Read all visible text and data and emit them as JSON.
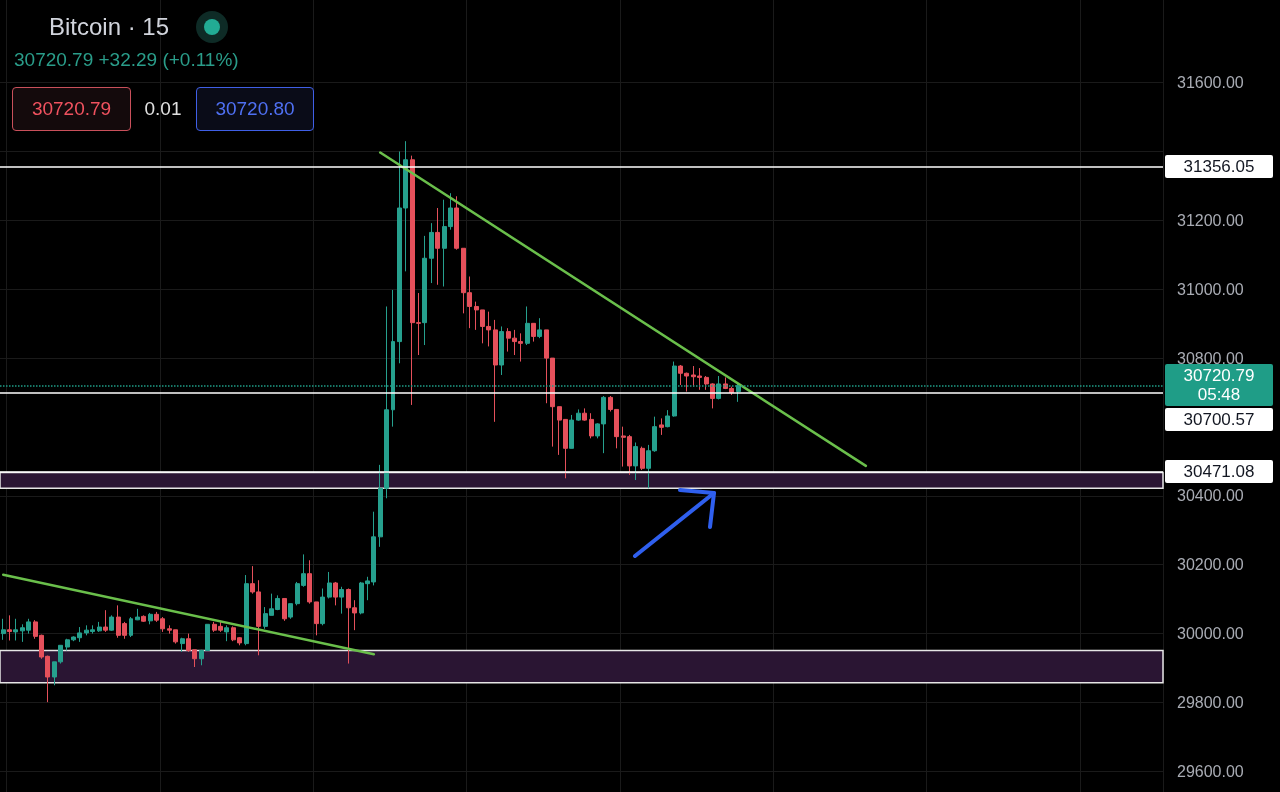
{
  "chart_data": {
    "type": "candlestick",
    "title": "Bitcoin · 15",
    "subtitle": "30720.79 +32.29 (+0.11%)",
    "annotations": [
      "30720.79",
      "0.01",
      "30720.80"
    ],
    "categories": [
      null,
      null,
      null,
      null,
      null,
      null,
      null,
      null,
      null,
      null,
      null,
      null,
      null,
      null,
      null,
      null,
      null,
      null,
      null,
      null,
      null,
      null,
      null,
      null,
      null,
      null,
      null,
      null,
      null,
      null,
      null,
      null,
      null,
      null,
      null,
      null,
      null,
      null,
      null,
      null,
      null,
      null,
      null,
      null,
      null,
      null,
      null,
      null,
      null,
      null,
      null,
      null,
      null,
      null,
      null,
      null,
      null,
      null,
      null,
      null,
      null,
      null,
      null,
      null,
      null,
      null,
      null,
      null,
      null,
      null,
      null,
      null,
      null,
      null,
      null,
      null,
      null,
      null,
      null,
      null,
      null,
      null,
      null,
      null,
      null,
      null,
      null,
      null,
      null,
      null,
      null,
      null,
      null,
      null,
      null,
      null,
      null,
      null,
      null,
      null,
      null,
      null,
      null,
      null,
      null,
      null,
      null,
      null,
      null,
      null,
      null,
      null,
      null,
      null,
      null,
      null,
      null,
      null,
      null,
      null,
      null,
      null,
      null,
      null,
      null,
      null,
      null,
      null,
      null,
      null,
      null,
      null,
      null,
      null,
      null,
      null,
      null,
      null,
      null,
      null,
      null,
      null,
      null,
      null,
      null,
      null,
      null,
      null,
      null,
      null,
      null,
      null,
      null,
      null,
      null,
      null,
      null,
      null,
      null,
      null,
      null,
      null,
      null,
      null,
      null,
      null,
      null,
      null,
      null,
      null,
      null,
      null,
      null,
      null,
      null,
      null,
      null,
      null,
      null,
      null,
      null,
      null
    ],
    "ohlc": [
      [
        30000,
        30043,
        29982,
        30011
      ],
      [
        30011,
        30053,
        29980,
        30006
      ],
      [
        30005,
        30043,
        29980,
        30011
      ],
      [
        30008,
        30027,
        29976,
        30017
      ],
      [
        30010,
        30043,
        30000,
        30034
      ],
      [
        30034,
        30039,
        29985,
        29992
      ],
      [
        29995,
        29997,
        29927,
        29932
      ],
      [
        29934,
        29936,
        29801,
        29874
      ],
      [
        29874,
        29918,
        29850,
        29918
      ],
      [
        29918,
        29966,
        29913,
        29966
      ],
      [
        29961,
        29985,
        29951,
        29982
      ],
      [
        29982,
        29992,
        29978,
        29990
      ],
      [
        29988,
        30019,
        29976,
        30002
      ],
      [
        30002,
        30024,
        29995,
        30010
      ],
      [
        30006,
        30024,
        30000,
        30011
      ],
      [
        30008,
        30034,
        30005,
        30019
      ],
      [
        30019,
        30068,
        30005,
        30010
      ],
      [
        30010,
        30053,
        30008,
        30048
      ],
      [
        30048,
        30082,
        29988,
        29995
      ],
      [
        30029,
        30034,
        29985,
        29995
      ],
      [
        29995,
        30048,
        29990,
        30043
      ],
      [
        30040,
        30072,
        30039,
        30048
      ],
      [
        30050,
        30053,
        30034,
        30036
      ],
      [
        30037,
        30060,
        30027,
        30056
      ],
      [
        30056,
        30063,
        30034,
        30039
      ],
      [
        30043,
        30048,
        30005,
        30014
      ],
      [
        30014,
        30024,
        30000,
        30010
      ],
      [
        30011,
        30011,
        29971,
        29976
      ],
      [
        29971,
        29988,
        29947,
        29985
      ],
      [
        29985,
        30000,
        29947,
        29951
      ],
      [
        29953,
        29953,
        29903,
        29927
      ],
      [
        29927,
        29953,
        29908,
        29951
      ],
      [
        29951,
        30027,
        29951,
        30027
      ],
      [
        30027,
        30034,
        30005,
        30010
      ],
      [
        30021,
        30037,
        30005,
        30010
      ],
      [
        30005,
        30024,
        29978,
        30017
      ],
      [
        30017,
        30021,
        29978,
        29982
      ],
      [
        29988,
        29990,
        29966,
        29973
      ],
      [
        29971,
        30170,
        29966,
        30145
      ],
      [
        30145,
        30196,
        30116,
        30121
      ],
      [
        30121,
        30155,
        29937,
        30021
      ],
      [
        30021,
        30077,
        30014,
        30058
      ],
      [
        30053,
        30116,
        30053,
        30072
      ],
      [
        30070,
        30111,
        30068,
        30102
      ],
      [
        30102,
        30102,
        30037,
        30043
      ],
      [
        30048,
        30087,
        30043,
        30087
      ],
      [
        30087,
        30150,
        30082,
        30145
      ],
      [
        30140,
        30230,
        30136,
        30174
      ],
      [
        30174,
        30213,
        30087,
        30092
      ],
      [
        30092,
        30092,
        29995,
        30029
      ],
      [
        30029,
        30131,
        30024,
        30106
      ],
      [
        30106,
        30179,
        30102,
        30147
      ],
      [
        30147,
        30150,
        30082,
        30106
      ],
      [
        30106,
        30136,
        30058,
        30128
      ],
      [
        30128,
        30131,
        29913,
        30075
      ],
      [
        30075,
        30097,
        30010,
        30060
      ],
      [
        30060,
        30150,
        30056,
        30147
      ],
      [
        30145,
        30165,
        30097,
        30153
      ],
      [
        30150,
        30354,
        30140,
        30281
      ],
      [
        30281,
        30490,
        30252,
        30422
      ],
      [
        30422,
        30950,
        30393,
        30650
      ],
      [
        30650,
        30998,
        30601,
        30848
      ],
      [
        30848,
        31400,
        30785,
        31236
      ],
      [
        31236,
        31430,
        31052,
        31376
      ],
      [
        31376,
        31388,
        30664,
        30903
      ],
      [
        30903,
        30989,
        30809,
        30901
      ],
      [
        30903,
        31155,
        30838,
        31090
      ],
      [
        31090,
        31192,
        31018,
        31165
      ],
      [
        31165,
        31236,
        31013,
        31119
      ],
      [
        31119,
        31260,
        31008,
        31182
      ],
      [
        31182,
        31279,
        31173,
        31236
      ],
      [
        31236,
        31270,
        31115,
        31119
      ],
      [
        31119,
        31119,
        30930,
        30990
      ],
      [
        30990,
        31037,
        30887,
        30950
      ],
      [
        30950,
        30964,
        30882,
        30940
      ],
      [
        30940,
        30940,
        30843,
        30892
      ],
      [
        30892,
        30935,
        30834,
        30882
      ],
      [
        30882,
        30911,
        30615,
        30780
      ],
      [
        30780,
        30892,
        30751,
        30877
      ],
      [
        30877,
        30887,
        30819,
        30858
      ],
      [
        30858,
        30882,
        30809,
        30848
      ],
      [
        30848,
        30872,
        30790,
        30843
      ],
      [
        30843,
        30950,
        30838,
        30901
      ],
      [
        30901,
        30901,
        30848,
        30863
      ],
      [
        30863,
        30916,
        30858,
        30882
      ],
      [
        30882,
        30882,
        30669,
        30800
      ],
      [
        30800,
        30800,
        30543,
        30659
      ],
      [
        30659,
        30659,
        30519,
        30620
      ],
      [
        30622,
        30622,
        30451,
        30538
      ],
      [
        30538,
        30635,
        30538,
        30620
      ],
      [
        30620,
        30651,
        30618,
        30640
      ],
      [
        30640,
        30654,
        30618,
        30620
      ],
      [
        30622,
        30640,
        30567,
        30574
      ],
      [
        30574,
        30611,
        30567,
        30609
      ],
      [
        30609,
        30690,
        30524,
        30686
      ],
      [
        30686,
        30690,
        30645,
        30651
      ],
      [
        30651,
        30651,
        30538,
        30572
      ],
      [
        30574,
        30601,
        30485,
        30570
      ],
      [
        30572,
        30577,
        30461,
        30487
      ],
      [
        30487,
        30555,
        30446,
        30543
      ],
      [
        30538,
        30543,
        30475,
        30480
      ],
      [
        30480,
        30548,
        30422,
        30531
      ],
      [
        30531,
        30630,
        30528,
        30601
      ],
      [
        30606,
        30625,
        30577,
        30599
      ],
      [
        30601,
        30649,
        30599,
        30632
      ],
      [
        30632,
        30790,
        30630,
        30777
      ],
      [
        30777,
        30780,
        30722,
        30756
      ],
      [
        30756,
        30758,
        30703,
        30748
      ],
      [
        30751,
        30777,
        30717,
        30746
      ],
      [
        30748,
        30771,
        30708,
        30744
      ],
      [
        30744,
        30748,
        30708,
        30725
      ],
      [
        30725,
        30727,
        30654,
        30683
      ],
      [
        30683,
        30748,
        30680,
        30725
      ],
      [
        30725,
        30744,
        30710,
        30712
      ],
      [
        30712,
        30717,
        30693,
        30700
      ],
      [
        30703,
        30730,
        30673,
        30721
      ],
      null,
      null,
      null,
      null,
      null,
      null,
      null,
      null,
      null,
      null,
      null,
      null,
      null,
      null,
      null,
      null,
      null,
      null,
      null,
      null,
      null,
      null,
      null,
      null,
      null,
      null,
      null,
      null,
      null,
      null,
      null,
      null,
      null,
      null,
      null,
      null,
      null,
      null,
      null,
      null,
      null,
      null,
      null,
      null,
      null,
      null,
      null,
      null,
      null,
      null,
      null,
      null,
      null,
      null,
      null,
      null,
      null,
      null,
      null,
      null,
      null,
      null,
      null,
      null,
      null,
      null
    ],
    "colors": [
      "#26a08e",
      "#e5505b",
      "#26a08e",
      "#26a08e",
      "#26a08e",
      "#e5505b",
      "#e5505b",
      "#e5505b",
      "#26a08e",
      "#26a08e",
      "#26a08e",
      "#26a08e",
      "#26a08e",
      "#26a08e",
      "#26a08e",
      "#26a08e",
      "#e5505b",
      "#26a08e",
      "#e5505b",
      "#e5505b",
      "#26a08e",
      "#26a08e",
      "#e5505b",
      "#26a08e",
      "#e5505b",
      "#e5505b",
      "#e5505b",
      "#e5505b",
      "#26a08e",
      "#e5505b",
      "#e5505b",
      "#26a08e",
      "#26a08e",
      "#e5505b",
      "#e5505b",
      "#26a08e",
      "#e5505b",
      "#e5505b",
      "#26a08e",
      "#e5505b",
      "#e5505b",
      "#26a08e",
      "#26a08e",
      "#26a08e",
      "#e5505b",
      "#26a08e",
      "#26a08e",
      "#26a08e",
      "#e5505b",
      "#e5505b",
      "#26a08e",
      "#26a08e",
      "#e5505b",
      "#26a08e",
      "#e5505b",
      "#e5505b",
      "#26a08e",
      "#26a08e",
      "#26a08e",
      "#26a08e",
      "#26a08e",
      "#26a08e",
      "#26a08e",
      "#26a08e",
      "#e5505b",
      "#e5505b",
      "#26a08e",
      "#26a08e",
      "#e5505b",
      "#26a08e",
      "#26a08e",
      "#e5505b",
      "#e5505b",
      "#e5505b",
      "#e5505b",
      "#e5505b",
      "#e5505b",
      "#e5505b",
      "#26a08e",
      "#e5505b",
      "#e5505b",
      "#e5505b",
      "#26a08e",
      "#e5505b",
      "#26a08e",
      "#e5505b",
      "#e5505b",
      "#e5505b",
      "#e5505b",
      "#26a08e",
      "#26a08e",
      "#e5505b",
      "#e5505b",
      "#26a08e",
      "#26a08e",
      "#e5505b",
      "#e5505b",
      "#e5505b",
      "#e5505b",
      "#26a08e",
      "#e5505b",
      "#26a08e",
      "#26a08e",
      "#e5505b",
      "#26a08e",
      "#26a08e",
      "#e5505b",
      "#e5505b",
      "#e5505b",
      "#e5505b",
      "#e5505b",
      "#e5505b",
      "#26a08e",
      "#e5505b",
      "#e5505b",
      "#26a08e",
      null,
      null,
      null,
      null,
      null,
      null,
      null,
      null,
      null,
      null,
      null,
      null,
      null,
      null,
      null,
      null,
      null,
      null,
      null,
      null,
      null,
      null,
      null,
      null,
      null,
      null,
      null,
      null,
      null,
      null,
      null,
      null,
      null,
      null,
      null,
      null,
      null,
      null,
      null,
      null,
      null,
      null,
      null,
      null,
      null,
      null,
      null,
      null,
      null,
      null,
      null,
      null,
      null,
      null,
      null,
      null,
      null,
      null,
      null,
      null,
      null,
      null,
      null,
      null,
      null,
      null
    ],
    "series": [
      {
        "type": "line",
        "color": "#6abf4b",
        "values": [
          null,
          null,
          null,
          null,
          null,
          null,
          null,
          null,
          null,
          null,
          null,
          null,
          null,
          null,
          null,
          null,
          null,
          null,
          null,
          null,
          null,
          null,
          null,
          null,
          null,
          null,
          null,
          null,
          null,
          null,
          null,
          null,
          null,
          null,
          null,
          null,
          null,
          null,
          null,
          null,
          null,
          null,
          null,
          null,
          null,
          null,
          null,
          null,
          null,
          null,
          null,
          null,
          null,
          null,
          null,
          null,
          null,
          null,
          null,
          31397,
          null,
          null,
          null,
          null,
          null,
          null,
          null,
          null,
          null,
          null,
          null,
          null,
          null,
          null,
          null,
          null,
          null,
          null,
          null,
          null,
          null,
          null,
          null,
          null,
          null,
          null,
          null,
          null,
          null,
          null,
          null,
          null,
          null,
          null,
          null,
          null,
          null,
          null,
          null,
          null,
          null,
          null,
          null,
          null,
          null,
          null,
          null,
          null,
          null,
          null,
          null,
          null,
          null,
          null,
          null,
          null,
          null,
          null,
          null,
          null,
          null,
          null,
          null,
          null,
          null,
          null,
          null,
          null,
          null,
          null,
          null,
          null,
          null,
          null,
          null,
          30487,
          null,
          null,
          null,
          null,
          null,
          null,
          null,
          null,
          null,
          null,
          null,
          null,
          null,
          null,
          null,
          null,
          null,
          null,
          null,
          null,
          null,
          null,
          null,
          null,
          null,
          null,
          null,
          null,
          null,
          null,
          null,
          null,
          null,
          null,
          null,
          null,
          null,
          null,
          null,
          null,
          null,
          null,
          null,
          null,
          null,
          null
        ]
      },
      {
        "type": "line",
        "color": "#6abf4b",
        "values": [
          30171,
          null,
          null,
          null,
          null,
          null,
          null,
          null,
          null,
          null,
          null,
          null,
          null,
          null,
          null,
          null,
          null,
          null,
          null,
          null,
          null,
          null,
          null,
          null,
          null,
          null,
          null,
          null,
          null,
          null,
          null,
          null,
          null,
          null,
          null,
          null,
          null,
          null,
          null,
          null,
          null,
          null,
          null,
          null,
          null,
          null,
          null,
          null,
          null,
          null,
          null,
          null,
          null,
          null,
          null,
          null,
          null,
          null,
          29940,
          null,
          null,
          null,
          null,
          null,
          null,
          null,
          null,
          null,
          null,
          null,
          null,
          null,
          null,
          null,
          null,
          null,
          null,
          null,
          null,
          null,
          null,
          null,
          null,
          null,
          null,
          null,
          null,
          null,
          null,
          null,
          null,
          null,
          null,
          null,
          null,
          null,
          null,
          null,
          null,
          null,
          null,
          null,
          null,
          null,
          null,
          null,
          null,
          null,
          null,
          null,
          null,
          null,
          null,
          null,
          null,
          null,
          null,
          null,
          null,
          null,
          null,
          null,
          null,
          null,
          null,
          null,
          null,
          null,
          null,
          null,
          null,
          null,
          null,
          null,
          null,
          null,
          null,
          null,
          null,
          null,
          null,
          null,
          null,
          null,
          null,
          null,
          null,
          null,
          null,
          null,
          null,
          null,
          null,
          null,
          null,
          null,
          null,
          null,
          null,
          null,
          null,
          null,
          null,
          null,
          null,
          null,
          null,
          null,
          null,
          null,
          null,
          null,
          null,
          null,
          null,
          null,
          null,
          null,
          null,
          null,
          null,
          null
        ]
      }
    ],
    "ylim": [
      29540,
      31840
    ],
    "yticks": [
      {
        "value": 29600,
        "label": "29600.00"
      },
      {
        "value": 29800,
        "label": "29800.00"
      },
      {
        "value": 30000,
        "label": "30000.00"
      },
      {
        "value": 30200,
        "label": "30200.00"
      },
      {
        "value": 30400,
        "label": "30400.00"
      },
      {
        "value": 30800,
        "label": "30800.00"
      },
      {
        "value": 31000,
        "label": "31000.00"
      },
      {
        "value": 31200,
        "label": "31200.00"
      },
      {
        "value": 31400,
        "label": null
      },
      {
        "value": 31600,
        "label": "31600.00"
      }
    ],
    "grid": true,
    "tick_labels": "y",
    "ref_lines": [
      {
        "axis": "y",
        "value": 31356.05,
        "label": "31356.05",
        "color": "#ffffff",
        "line_style": "solid"
      },
      {
        "axis": "y",
        "value": 30720.79,
        "label": "30720.79\n05:48",
        "color": "#1f9d87",
        "line_style": "dotted"
      },
      {
        "axis": "y",
        "value": 30700.57,
        "label": "30700.57",
        "color": "#ffffff",
        "line_style": "solid"
      },
      {
        "axis": "y",
        "value": 30471.08,
        "label": "30471.08",
        "color": "#ffffff",
        "line_style": "solid"
      }
    ],
    "bands": [
      {
        "axis": "y",
        "from": 29857,
        "to": 29951,
        "color": "#2a1533"
      },
      {
        "axis": "y",
        "from": 30422,
        "to": 30468,
        "color": "#2a1533"
      }
    ]
  }
}
